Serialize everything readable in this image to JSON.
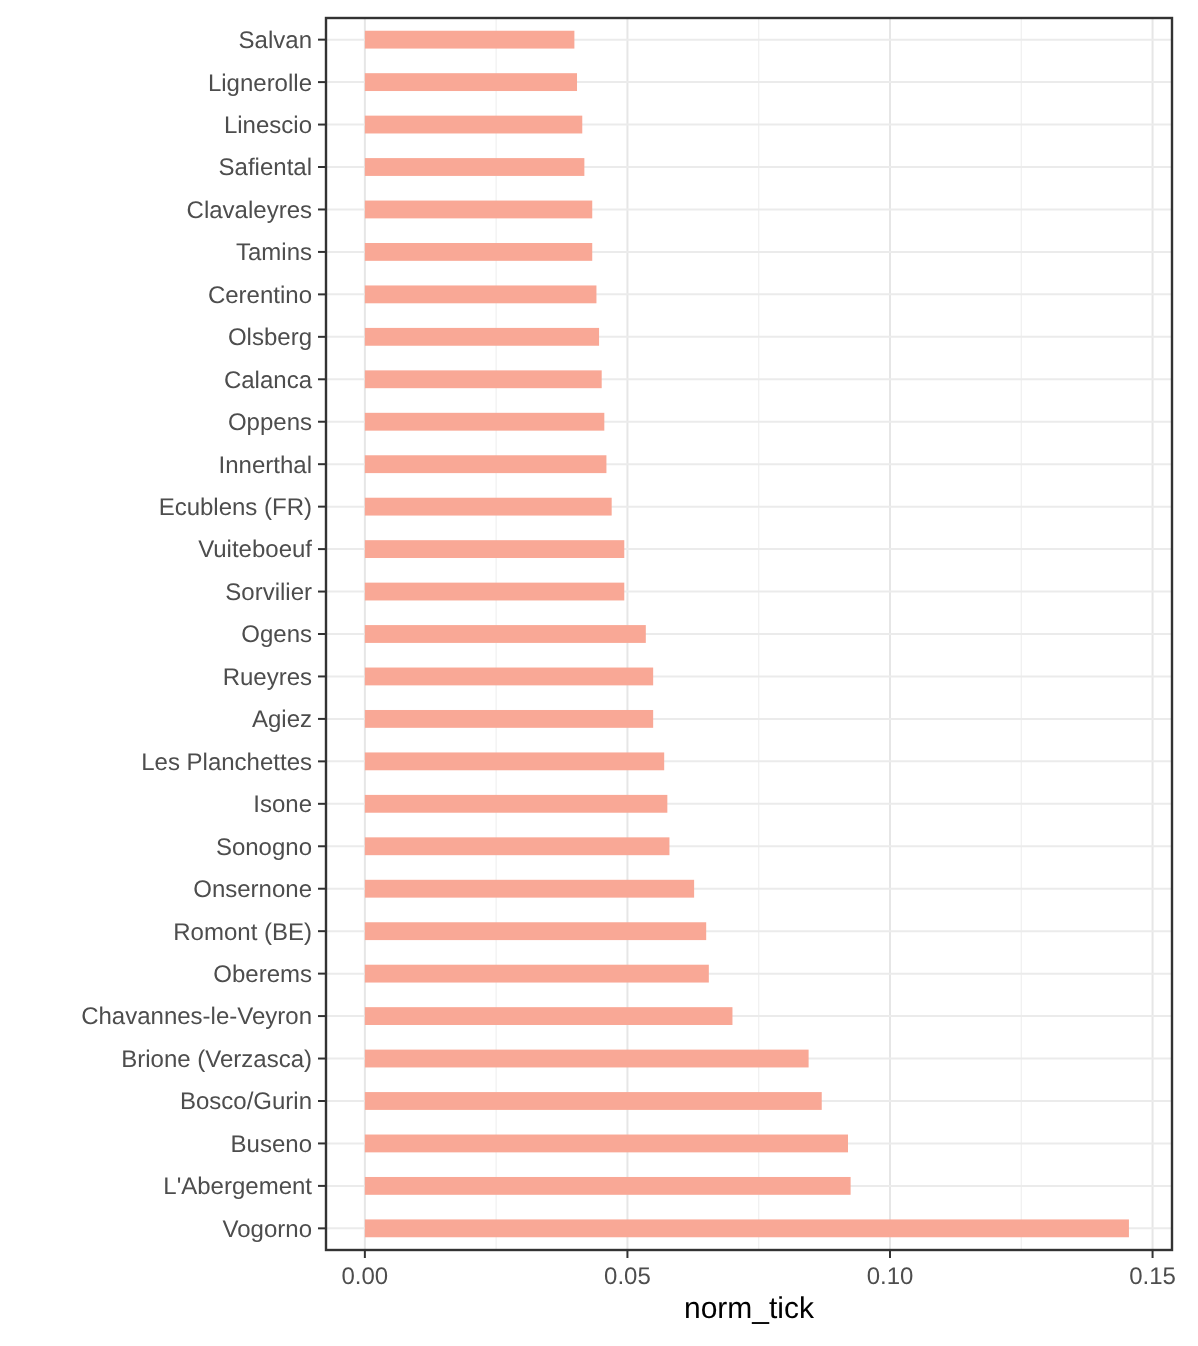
{
  "chart_data": {
    "type": "bar",
    "orientation": "horizontal",
    "xlabel": "norm_tick",
    "categories": [
      "Salvan",
      "Lignerolle",
      "Linescio",
      "Safiental",
      "Clavaleyres",
      "Tamins",
      "Cerentino",
      "Olsberg",
      "Calanca",
      "Oppens",
      "Innerthal",
      "Ecublens (FR)",
      "Vuiteboeuf",
      "Sorvilier",
      "Ogens",
      "Rueyres",
      "Agiez",
      "Les Planchettes",
      "Isone",
      "Sonogno",
      "Onsernone",
      "Romont (BE)",
      "Oberems",
      "Chavannes-le-Veyron",
      "Brione (Verzasca)",
      "Bosco/Gurin",
      "Buseno",
      "L'Abergement",
      "Vogorno"
    ],
    "values": [
      0.0399,
      0.0404,
      0.0414,
      0.0418,
      0.0433,
      0.0433,
      0.0441,
      0.0446,
      0.0451,
      0.0456,
      0.046,
      0.047,
      0.0494,
      0.0494,
      0.0535,
      0.0549,
      0.0549,
      0.057,
      0.0576,
      0.058,
      0.0627,
      0.065,
      0.0655,
      0.07,
      0.0845,
      0.087,
      0.092,
      0.0925,
      0.1455
    ],
    "color": "#f9a896",
    "xlim": [
      -0.0074,
      0.1537
    ],
    "xticks": [
      {
        "value": 0,
        "label": "0.00"
      },
      {
        "value": 0.05,
        "label": "0.05"
      },
      {
        "value": 0.1,
        "label": "0.10"
      },
      {
        "value": 0.15,
        "label": "0.15"
      }
    ],
    "grid": true
  }
}
